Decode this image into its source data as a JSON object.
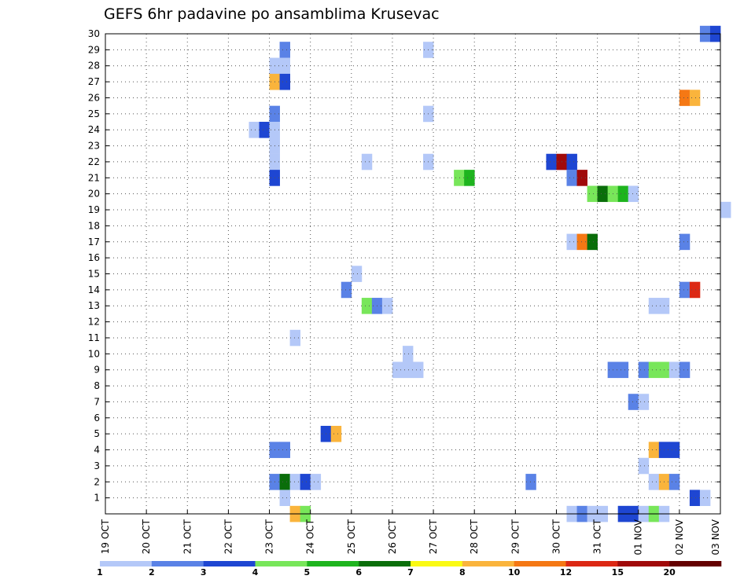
{
  "chart_data": {
    "type": "heatmap",
    "title": "GEFS 6hr padavine po ansamblima Krusevac",
    "xlabel": "",
    "ylabel": "",
    "x_ticks": [
      "19 OCT",
      "20 OCT",
      "21 OCT",
      "22 OCT",
      "23 OCT",
      "24 OCT",
      "25 OCT",
      "26 OCT",
      "27 OCT",
      "28 OCT",
      "29 OCT",
      "30 OCT",
      "31 OCT",
      "01 NOV",
      "02 NOV",
      "03 NOV"
    ],
    "y_ticks": [
      "1",
      "2",
      "3",
      "4",
      "5",
      "6",
      "7",
      "8",
      "9",
      "10",
      "11",
      "12",
      "13",
      "14",
      "15",
      "16",
      "17",
      "18",
      "19",
      "20",
      "21",
      "22",
      "23",
      "24",
      "25",
      "26",
      "27",
      "28",
      "29",
      "30"
    ],
    "xlim_days": [
      0,
      15
    ],
    "ylim_members": [
      0,
      30
    ],
    "grid": true,
    "colorbar": {
      "thresholds": [
        "1",
        "2",
        "3",
        "4",
        "5",
        "6",
        "7",
        "8",
        "10",
        "12",
        "15",
        "20"
      ],
      "colors": [
        "#b4c8f8",
        "#5a82e6",
        "#1e46d2",
        "#78e65a",
        "#1eb41e",
        "#0a6e0a",
        "#fafa14",
        "#fab43c",
        "#f57814",
        "#dc2814",
        "#a00a0a",
        "#640000"
      ]
    },
    "cells": [
      {
        "t": "23 OCT 06",
        "m": 29,
        "c": 2
      },
      {
        "t": "26 OCT 18",
        "m": 29,
        "c": 1
      },
      {
        "t": "23 OCT 00",
        "m": 28,
        "c": 1
      },
      {
        "t": "23 OCT 06",
        "m": 28,
        "c": 1
      },
      {
        "t": "23 OCT 00",
        "m": 27,
        "c": 8
      },
      {
        "t": "23 OCT 06",
        "m": 27,
        "c": 3
      },
      {
        "t": "23 OCT 00",
        "m": 25,
        "c": 2
      },
      {
        "t": "26 OCT 18",
        "m": 25,
        "c": 1
      },
      {
        "t": "22 OCT 12",
        "m": 24,
        "c": 1
      },
      {
        "t": "22 OCT 18",
        "m": 24,
        "c": 3
      },
      {
        "t": "23 OCT 00",
        "m": 24,
        "c": 1
      },
      {
        "t": "23 OCT 00",
        "m": 23,
        "c": 1
      },
      {
        "t": "23 OCT 00",
        "m": 22,
        "c": 1
      },
      {
        "t": "25 OCT 06",
        "m": 22,
        "c": 1
      },
      {
        "t": "26 OCT 18",
        "m": 22,
        "c": 1
      },
      {
        "t": "29 OCT 18",
        "m": 22,
        "c": 3
      },
      {
        "t": "30 OCT 00",
        "m": 22,
        "c": 11
      },
      {
        "t": "30 OCT 06",
        "m": 22,
        "c": 3
      },
      {
        "t": "23 OCT 00",
        "m": 21,
        "c": 3
      },
      {
        "t": "27 OCT 12",
        "m": 21,
        "c": 4
      },
      {
        "t": "27 OCT 18",
        "m": 21,
        "c": 5
      },
      {
        "t": "30 OCT 06",
        "m": 21,
        "c": 2
      },
      {
        "t": "30 OCT 12",
        "m": 21,
        "c": 11
      },
      {
        "t": "30 OCT 18",
        "m": 20,
        "c": 4
      },
      {
        "t": "31 OCT 00",
        "m": 20,
        "c": 6
      },
      {
        "t": "31 OCT 06",
        "m": 20,
        "c": 4
      },
      {
        "t": "31 OCT 12",
        "m": 20,
        "c": 5
      },
      {
        "t": "31 OCT 18",
        "m": 20,
        "c": 1
      },
      {
        "t": "03 NOV 00",
        "m": 19,
        "c": 1
      },
      {
        "t": "30 OCT 06",
        "m": 17,
        "c": 1
      },
      {
        "t": "30 OCT 12",
        "m": 17,
        "c": 9
      },
      {
        "t": "30 OCT 18",
        "m": 17,
        "c": 6
      },
      {
        "t": "02 NOV 00",
        "m": 17,
        "c": 2
      },
      {
        "t": "25 OCT 00",
        "m": 15,
        "c": 1
      },
      {
        "t": "24 OCT 18",
        "m": 14,
        "c": 2
      },
      {
        "t": "02 NOV 00",
        "m": 14,
        "c": 2
      },
      {
        "t": "02 NOV 06",
        "m": 14,
        "c": 10
      },
      {
        "t": "25 OCT 06",
        "m": 13,
        "c": 4
      },
      {
        "t": "25 OCT 12",
        "m": 13,
        "c": 2
      },
      {
        "t": "25 OCT 18",
        "m": 13,
        "c": 1
      },
      {
        "t": "01 NOV 06",
        "m": 13,
        "c": 1
      },
      {
        "t": "01 NOV 12",
        "m": 13,
        "c": 1
      },
      {
        "t": "23 OCT 12",
        "m": 11,
        "c": 1
      },
      {
        "t": "26 OCT 06",
        "m": 10,
        "c": 1
      },
      {
        "t": "26 OCT 00",
        "m": 9,
        "c": 1
      },
      {
        "t": "26 OCT 06",
        "m": 9,
        "c": 1
      },
      {
        "t": "26 OCT 12",
        "m": 9,
        "c": 1
      },
      {
        "t": "31 OCT 06",
        "m": 9,
        "c": 2
      },
      {
        "t": "31 OCT 12",
        "m": 9,
        "c": 2
      },
      {
        "t": "01 NOV 00",
        "m": 9,
        "c": 2
      },
      {
        "t": "01 NOV 06",
        "m": 9,
        "c": 4
      },
      {
        "t": "01 NOV 12",
        "m": 9,
        "c": 4
      },
      {
        "t": "01 NOV 18",
        "m": 9,
        "c": 1
      },
      {
        "t": "02 NOV 00",
        "m": 9,
        "c": 2
      },
      {
        "t": "31 OCT 18",
        "m": 7,
        "c": 2
      },
      {
        "t": "01 NOV 00",
        "m": 7,
        "c": 1
      },
      {
        "t": "24 OCT 06",
        "m": 5,
        "c": 3
      },
      {
        "t": "24 OCT 12",
        "m": 5,
        "c": 8
      },
      {
        "t": "23 OCT 00",
        "m": 4,
        "c": 2
      },
      {
        "t": "23 OCT 06",
        "m": 4,
        "c": 2
      },
      {
        "t": "01 NOV 06",
        "m": 4,
        "c": 8
      },
      {
        "t": "01 NOV 12",
        "m": 4,
        "c": 3
      },
      {
        "t": "01 NOV 18",
        "m": 4,
        "c": 3
      },
      {
        "t": "01 NOV 00",
        "m": 3,
        "c": 1
      },
      {
        "t": "23 OCT 00",
        "m": 2,
        "c": 2
      },
      {
        "t": "23 OCT 06",
        "m": 2,
        "c": 6
      },
      {
        "t": "23 OCT 12",
        "m": 2,
        "c": 1
      },
      {
        "t": "23 OCT 18",
        "m": 2,
        "c": 3
      },
      {
        "t": "24 OCT 00",
        "m": 2,
        "c": 1
      },
      {
        "t": "29 OCT 06",
        "m": 2,
        "c": 2
      },
      {
        "t": "01 NOV 06",
        "m": 2,
        "c": 1
      },
      {
        "t": "01 NOV 12",
        "m": 2,
        "c": 8
      },
      {
        "t": "01 NOV 18",
        "m": 2,
        "c": 2
      },
      {
        "t": "02 NOV 06",
        "m": 1,
        "c": 3
      },
      {
        "t": "02 NOV 12",
        "m": 1,
        "c": 1
      },
      {
        "t": "23 OCT 06",
        "m": 1,
        "c": 1
      },
      {
        "t": "23 OCT 12",
        "m": 0,
        "c": 8
      },
      {
        "t": "23 OCT 18",
        "m": 0,
        "c": 4
      },
      {
        "t": "30 OCT 06",
        "m": 0,
        "c": 1
      },
      {
        "t": "30 OCT 12",
        "m": 0,
        "c": 2
      },
      {
        "t": "30 OCT 18",
        "m": 0,
        "c": 1
      },
      {
        "t": "31 OCT 00",
        "m": 0,
        "c": 1
      },
      {
        "t": "31 OCT 12",
        "m": 0,
        "c": 3
      },
      {
        "t": "31 OCT 18",
        "m": 0,
        "c": 3
      },
      {
        "t": "01 NOV 00",
        "m": 0,
        "c": 1
      },
      {
        "t": "01 NOV 06",
        "m": 0,
        "c": 4
      },
      {
        "t": "01 NOV 12",
        "m": 0,
        "c": 1
      },
      {
        "t": "02 NOV 12",
        "m": 30,
        "c": 2
      },
      {
        "t": "02 NOV 18",
        "m": 30,
        "c": 3
      },
      {
        "t": "02 NOV 00",
        "m": 26,
        "c": 9
      },
      {
        "t": "02 NOV 06",
        "m": 26,
        "c": 8
      }
    ]
  }
}
